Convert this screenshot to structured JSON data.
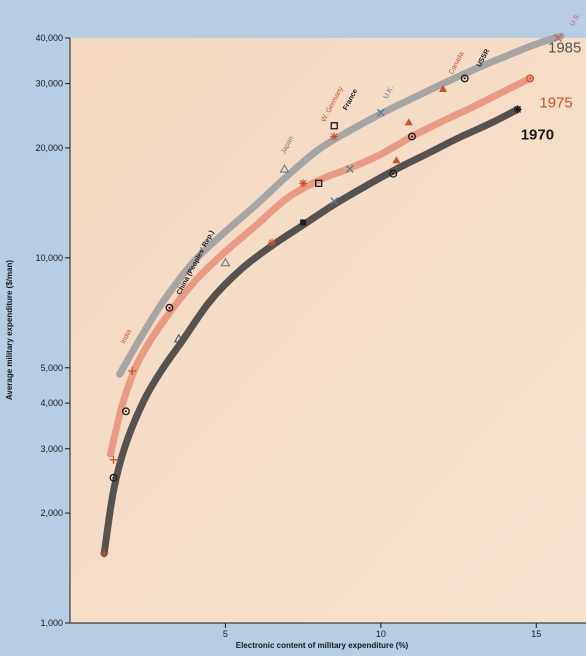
{
  "chart_data": {
    "type": "line",
    "xlabel": "Electronic content of military expenditure (%)",
    "ylabel": "Average military expenditure ($/man)",
    "xlim": [
      0,
      16.6
    ],
    "ylim": [
      1000,
      40000
    ],
    "y_scale": "log",
    "x_ticks": [
      {
        "value": 5,
        "label": "5"
      },
      {
        "value": 10,
        "label": "10"
      },
      {
        "value": 15,
        "label": "15"
      }
    ],
    "y_ticks": [
      {
        "value": 1000,
        "label": "1,000"
      },
      {
        "value": 2000,
        "label": "2,000"
      },
      {
        "value": 3000,
        "label": "3,000"
      },
      {
        "value": 4000,
        "label": "4,000"
      },
      {
        "value": 5000,
        "label": "5,000"
      },
      {
        "value": 10000,
        "label": "10,000"
      },
      {
        "value": 20000,
        "label": "20,000"
      },
      {
        "value": 30000,
        "label": "30,000"
      },
      {
        "value": 40000,
        "label": "40,000"
      }
    ],
    "series": [
      {
        "name": "1985",
        "color": "#9e9e9e",
        "label_color": "#555555",
        "curve": [
          [
            1.6,
            4800
          ],
          [
            2.2,
            5900
          ],
          [
            3.0,
            7600
          ],
          [
            4.0,
            9800
          ],
          [
            5.0,
            11800
          ],
          [
            6.0,
            14000
          ],
          [
            7.0,
            16800
          ],
          [
            8.0,
            19800
          ],
          [
            9.0,
            22300
          ],
          [
            10.0,
            24800
          ],
          [
            11.0,
            27300
          ],
          [
            12.0,
            30000
          ],
          [
            13.0,
            32800
          ],
          [
            14.0,
            35600
          ],
          [
            15.0,
            38500
          ],
          [
            15.8,
            40500
          ]
        ],
        "points": [
          {
            "x": 3.2,
            "y": 7300,
            "marker": "circle-dot",
            "color": "#1a1a1a"
          },
          {
            "x": 6.9,
            "y": 17500,
            "marker": "triangle",
            "color": "#777777"
          },
          {
            "x": 8.5,
            "y": 23000,
            "marker": "square",
            "color": "#1a1a1a"
          },
          {
            "x": 10.0,
            "y": 25000,
            "marker": "x",
            "color": "#5a7a9a"
          },
          {
            "x": 12.0,
            "y": 29000,
            "marker": "triangle-filled",
            "color": "#c8502a"
          },
          {
            "x": 12.7,
            "y": 31000,
            "marker": "circle-dot",
            "color": "#1a1a1a"
          },
          {
            "x": 15.7,
            "y": 40000,
            "marker": "x",
            "color": "#c85a6a"
          }
        ]
      },
      {
        "name": "1975",
        "color": "#e8927a",
        "label_color": "#c8502a",
        "curve": [
          [
            1.3,
            2900
          ],
          [
            1.7,
            4000
          ],
          [
            2.2,
            5200
          ],
          [
            3.0,
            6700
          ],
          [
            4.0,
            8600
          ],
          [
            5.0,
            10400
          ],
          [
            6.0,
            12300
          ],
          [
            7.0,
            14600
          ],
          [
            8.0,
            16300
          ],
          [
            9.0,
            17600
          ],
          [
            10.0,
            19200
          ],
          [
            11.0,
            21500
          ],
          [
            12.0,
            23700
          ],
          [
            13.0,
            26000
          ],
          [
            14.0,
            28700
          ],
          [
            14.8,
            31000
          ]
        ],
        "points": [
          {
            "x": 1.4,
            "y": 2800,
            "marker": "plus",
            "color": "#c8502a"
          },
          {
            "x": 1.8,
            "y": 3800,
            "marker": "circle-dot",
            "color": "#1a1a1a"
          },
          {
            "x": 2.0,
            "y": 4900,
            "marker": "plus",
            "color": "#c8502a"
          },
          {
            "x": 7.5,
            "y": 16000,
            "marker": "star",
            "color": "#c8502a"
          },
          {
            "x": 8.0,
            "y": 16000,
            "marker": "square",
            "color": "#1a1a1a"
          },
          {
            "x": 8.5,
            "y": 21500,
            "marker": "star",
            "color": "#c8502a"
          },
          {
            "x": 9.0,
            "y": 17500,
            "marker": "x",
            "color": "#5a7a9a"
          },
          {
            "x": 10.5,
            "y": 18500,
            "marker": "triangle-filled",
            "color": "#c8502a"
          },
          {
            "x": 10.9,
            "y": 23500,
            "marker": "triangle-filled",
            "color": "#c8502a"
          },
          {
            "x": 11.0,
            "y": 21500,
            "marker": "circle-dot",
            "color": "#1a1a1a"
          },
          {
            "x": 14.8,
            "y": 31000,
            "marker": "circle-dot",
            "color": "#c8502a"
          }
        ]
      },
      {
        "name": "1970",
        "color": "#3a3a3a",
        "label_color": "#1a1a1a",
        "curve": [
          [
            1.1,
            1550
          ],
          [
            1.4,
            2300
          ],
          [
            1.8,
            3100
          ],
          [
            2.4,
            4100
          ],
          [
            3.0,
            5000
          ],
          [
            3.6,
            5900
          ],
          [
            4.5,
            7600
          ],
          [
            5.5,
            9300
          ],
          [
            6.5,
            10800
          ],
          [
            7.5,
            12300
          ],
          [
            8.5,
            14000
          ],
          [
            9.5,
            15700
          ],
          [
            10.5,
            17500
          ],
          [
            11.5,
            19300
          ],
          [
            12.5,
            21300
          ],
          [
            13.5,
            23300
          ],
          [
            14.4,
            25500
          ]
        ],
        "points": [
          {
            "x": 1.1,
            "y": 1550,
            "marker": "plus",
            "color": "#c8502a"
          },
          {
            "x": 1.4,
            "y": 2500,
            "marker": "circle-dot",
            "color": "#1a1a1a"
          },
          {
            "x": 3.5,
            "y": 6000,
            "marker": "triangle",
            "color": "#555555"
          },
          {
            "x": 5.0,
            "y": 9700,
            "marker": "triangle",
            "color": "#777777"
          },
          {
            "x": 6.5,
            "y": 11000,
            "marker": "star",
            "color": "#c8502a"
          },
          {
            "x": 7.5,
            "y": 12500,
            "marker": "square-filled",
            "color": "#1a1a1a"
          },
          {
            "x": 8.5,
            "y": 14300,
            "marker": "x",
            "color": "#5a7a9a"
          },
          {
            "x": 10.4,
            "y": 17000,
            "marker": "circle-dot",
            "color": "#1a1a1a"
          },
          {
            "x": 14.4,
            "y": 25500,
            "marker": "star",
            "color": "#1a1a1a"
          }
        ]
      }
    ],
    "annotations": [
      {
        "text": "India",
        "x": 1.75,
        "y": 5800,
        "rotate": -62,
        "color": "#c8502a"
      },
      {
        "text": "China (Peoples' Rep.)",
        "x": 3.55,
        "y": 7900,
        "rotate": -62,
        "color": "#1a1a1a"
      },
      {
        "text": "Japan",
        "x": 6.9,
        "y": 19200,
        "rotate": -62,
        "color": "#777777"
      },
      {
        "text": "W. Germany",
        "x": 8.2,
        "y": 23500,
        "rotate": -62,
        "color": "#c8502a"
      },
      {
        "text": "France",
        "x": 8.9,
        "y": 25300,
        "rotate": -62,
        "color": "#1a1a1a"
      },
      {
        "text": "U.K.",
        "x": 10.2,
        "y": 27200,
        "rotate": -62,
        "color": "#5a7a9a"
      },
      {
        "text": "Canada",
        "x": 12.3,
        "y": 31700,
        "rotate": -62,
        "color": "#c8502a"
      },
      {
        "text": "USSR",
        "x": 13.2,
        "y": 33200,
        "rotate": -62,
        "color": "#1a1a1a"
      },
      {
        "text": "U.S.",
        "x": 16.2,
        "y": 43000,
        "rotate": -62,
        "color": "#c85a6a"
      }
    ],
    "series_labels": [
      {
        "text": "1985",
        "series": 0,
        "x": 16.1,
        "y": 36500
      },
      {
        "text": "1975",
        "series": 1,
        "x": 15.1,
        "y": 25800
      },
      {
        "text": "1970",
        "series": 2,
        "x": 14.5,
        "y": 21100
      }
    ]
  }
}
